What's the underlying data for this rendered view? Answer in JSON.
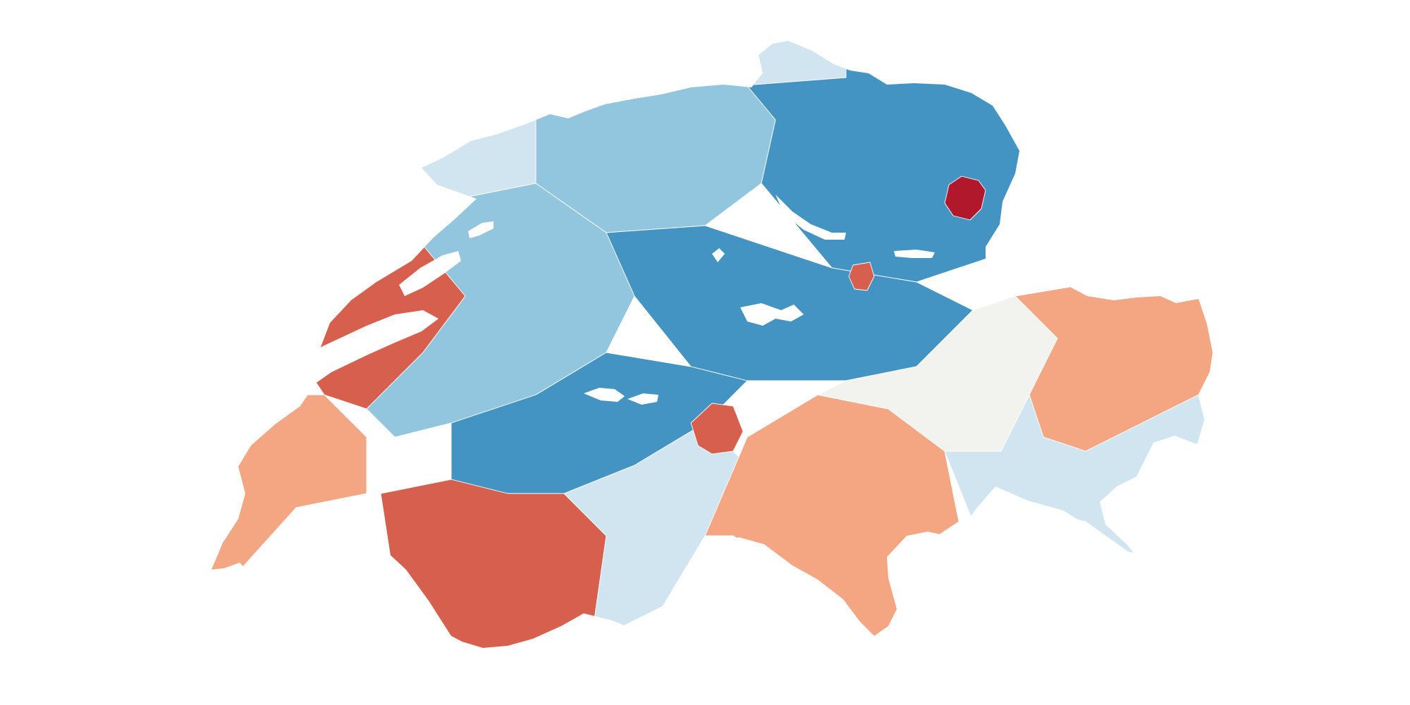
{
  "map": {
    "type": "choropleth",
    "region": "Switzerland",
    "unit": "municipalities",
    "background": "#ffffff",
    "border_color": "#ffffff",
    "palette": {
      "diverging": [
        "#b2182b",
        "#d6604d",
        "#f4a582",
        "#fddbc7",
        "#f2f2ee",
        "#d1e5f0",
        "#92c5de",
        "#4393c3",
        "#2166ac"
      ],
      "low_label_color": "#b2182b",
      "high_label_color": "#2166ac"
    },
    "regions": [
      {
        "id": "north-jura",
        "level": 0.66
      },
      {
        "id": "north-central",
        "level": 0.78
      },
      {
        "id": "northeast",
        "level": 0.85
      },
      {
        "id": "schaffhausen",
        "level": 0.58
      },
      {
        "id": "lake-geneva-shore",
        "level": 0.22
      },
      {
        "id": "neuchatel-region",
        "level": 0.18
      },
      {
        "id": "fribourg-bern-plateau",
        "level": 0.74
      },
      {
        "id": "central-switzerland",
        "level": 0.88
      },
      {
        "id": "bernese-oberland",
        "level": 0.82
      },
      {
        "id": "lower-valais",
        "level": 0.12
      },
      {
        "id": "upper-valais",
        "level": 0.62
      },
      {
        "id": "ticino",
        "level": 0.2
      },
      {
        "id": "graubuenden-west",
        "level": 0.55
      },
      {
        "id": "graubuenden-east",
        "level": 0.3
      },
      {
        "id": "engadin",
        "level": 0.6
      },
      {
        "id": "appenzell",
        "level": 0.02
      },
      {
        "id": "glarus-outlier",
        "level": 0.1
      },
      {
        "id": "schwyz-outlier",
        "level": 0.15
      }
    ]
  }
}
